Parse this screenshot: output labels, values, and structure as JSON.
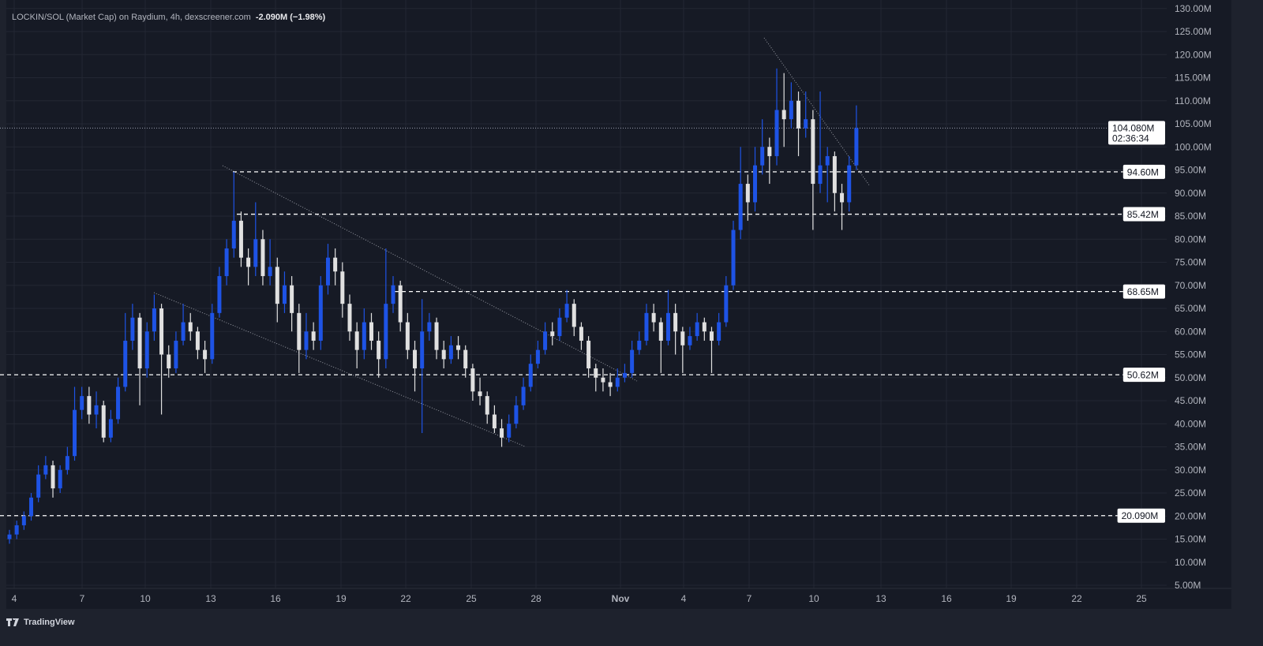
{
  "header": {
    "title": "LOCKIN/SOL (Market Cap) on Raydium, 4h, dexscreener.com",
    "change": "-2.090M (−1.98%)"
  },
  "footer": {
    "brand": "TradingView",
    "logo_icon": "tradingview-logo-icon"
  },
  "colors": {
    "background": "#161a25",
    "grid": "#232733",
    "up": "#1e53e5",
    "down": "#e0e0e0",
    "tag_bg": "#ffffff"
  },
  "chart_data": {
    "type": "candlestick",
    "title": "LOCKIN/SOL (Market Cap) on Raydium, 4h, dexscreener.com",
    "ylim": [
      5,
      130
    ],
    "yticks": [
      "5.00M",
      "10.00M",
      "15.00M",
      "20.00M",
      "25.00M",
      "30.00M",
      "35.00M",
      "40.00M",
      "45.00M",
      "50.00M",
      "55.00M",
      "60.00M",
      "65.00M",
      "70.00M",
      "75.00M",
      "80.00M",
      "85.00M",
      "90.00M",
      "95.00M",
      "100.00M",
      "105.00M",
      "110.00M",
      "115.00M",
      "120.00M",
      "125.00M",
      "130.00M"
    ],
    "ytick_values": [
      5,
      10,
      15,
      20,
      25,
      30,
      35,
      40,
      45,
      50,
      55,
      60,
      65,
      70,
      75,
      80,
      85,
      90,
      95,
      100,
      105,
      110,
      115,
      120,
      125,
      130
    ],
    "xticks": [
      "4",
      "7",
      "10",
      "13",
      "16",
      "19",
      "22",
      "25",
      "28",
      "Nov",
      "4",
      "7",
      "10",
      "13",
      "16",
      "19",
      "22",
      "25"
    ],
    "grid": true,
    "last_price": {
      "value": 104.08,
      "label": "104.080M",
      "countdown": "02:36:34"
    },
    "levels": [
      {
        "value": 94.6,
        "label": "94.60M"
      },
      {
        "value": 85.42,
        "label": "85.42M"
      },
      {
        "value": 68.65,
        "label": "68.65M"
      },
      {
        "value": 50.62,
        "label": "50.62M"
      },
      {
        "value": 20.09,
        "label": "20.090M"
      }
    ],
    "candles_ohlc": [
      [
        15,
        17,
        14,
        16
      ],
      [
        16,
        19,
        15,
        18
      ],
      [
        18,
        21,
        17,
        20
      ],
      [
        20,
        25,
        19,
        24
      ],
      [
        24,
        31,
        23,
        29
      ],
      [
        29,
        33,
        28,
        31
      ],
      [
        31,
        32,
        24,
        26
      ],
      [
        26,
        31,
        25,
        30
      ],
      [
        30,
        35,
        29,
        33
      ],
      [
        33,
        48,
        32,
        43
      ],
      [
        43,
        48,
        41,
        46
      ],
      [
        46,
        48,
        40,
        42
      ],
      [
        42,
        47,
        39,
        44
      ],
      [
        44,
        45,
        36,
        37
      ],
      [
        37,
        43,
        36,
        41
      ],
      [
        41,
        50,
        40,
        48
      ],
      [
        48,
        64,
        47,
        58
      ],
      [
        58,
        66,
        56,
        63
      ],
      [
        63,
        64,
        44,
        52
      ],
      [
        52,
        62,
        50,
        60
      ],
      [
        60,
        68,
        58,
        65
      ],
      [
        65,
        66,
        42,
        55
      ],
      [
        55,
        57,
        50,
        52
      ],
      [
        52,
        60,
        51,
        58
      ],
      [
        58,
        66,
        57,
        62
      ],
      [
        62,
        64,
        58,
        60
      ],
      [
        60,
        61,
        54,
        56
      ],
      [
        56,
        58,
        51,
        54
      ],
      [
        54,
        66,
        53,
        64
      ],
      [
        64,
        74,
        63,
        72
      ],
      [
        72,
        80,
        70,
        78
      ],
      [
        78,
        94.6,
        76,
        84
      ],
      [
        84,
        86,
        74,
        76
      ],
      [
        76,
        78,
        70,
        74
      ],
      [
        74,
        88,
        72,
        80
      ],
      [
        80,
        82,
        70,
        72
      ],
      [
        72,
        80,
        70,
        74
      ],
      [
        74,
        76,
        62,
        66
      ],
      [
        66,
        73,
        64,
        70
      ],
      [
        70,
        72,
        60,
        64
      ],
      [
        64,
        66,
        51,
        56
      ],
      [
        56,
        64,
        54,
        60
      ],
      [
        60,
        62,
        56,
        58
      ],
      [
        58,
        72,
        56,
        70
      ],
      [
        70,
        79,
        68,
        76
      ],
      [
        76,
        78,
        70,
        73
      ],
      [
        73,
        75,
        63,
        66
      ],
      [
        66,
        68,
        58,
        60
      ],
      [
        60,
        62,
        52,
        56
      ],
      [
        56,
        65,
        54,
        62
      ],
      [
        62,
        64,
        56,
        58
      ],
      [
        58,
        60,
        50,
        54
      ],
      [
        54,
        78,
        52,
        66
      ],
      [
        66,
        72,
        64,
        70
      ],
      [
        70,
        71,
        60,
        62
      ],
      [
        62,
        64,
        54,
        56
      ],
      [
        56,
        58,
        47,
        52
      ],
      [
        52,
        67,
        38,
        60
      ],
      [
        60,
        64,
        58,
        62
      ],
      [
        62,
        63,
        54,
        56
      ],
      [
        56,
        58,
        52,
        54
      ],
      [
        54,
        59,
        53,
        57
      ],
      [
        57,
        59,
        54,
        56
      ],
      [
        56,
        57,
        50,
        52
      ],
      [
        52,
        53,
        45,
        47
      ],
      [
        47,
        50,
        44,
        46
      ],
      [
        46,
        47,
        40,
        42
      ],
      [
        42,
        44,
        38,
        39
      ],
      [
        39,
        41,
        35,
        37
      ],
      [
        37,
        42,
        36,
        40
      ],
      [
        40,
        46,
        39,
        44
      ],
      [
        44,
        50,
        43,
        48
      ],
      [
        48,
        55,
        47,
        53
      ],
      [
        53,
        58,
        52,
        56
      ],
      [
        56,
        62,
        55,
        60
      ],
      [
        60,
        62,
        57,
        59
      ],
      [
        59,
        65,
        58,
        63
      ],
      [
        63,
        69,
        62,
        66
      ],
      [
        66,
        67,
        59,
        61
      ],
      [
        61,
        62,
        56,
        58
      ],
      [
        58,
        59,
        50,
        52
      ],
      [
        52,
        53,
        47,
        50
      ],
      [
        50,
        52,
        47,
        49
      ],
      [
        49,
        51,
        46,
        48
      ],
      [
        48,
        52,
        47,
        50
      ],
      [
        50,
        53,
        49,
        51
      ],
      [
        51,
        58,
        50,
        56
      ],
      [
        56,
        60,
        55,
        58
      ],
      [
        58,
        66,
        57,
        64
      ],
      [
        64,
        66,
        60,
        62
      ],
      [
        62,
        63,
        51,
        58
      ],
      [
        58,
        69,
        57,
        64
      ],
      [
        64,
        66,
        55,
        60
      ],
      [
        60,
        61,
        51,
        57
      ],
      [
        57,
        61,
        56,
        59
      ],
      [
        59,
        64,
        58,
        62
      ],
      [
        62,
        63,
        58,
        60
      ],
      [
        60,
        61,
        51,
        58
      ],
      [
        58,
        64,
        57,
        62
      ],
      [
        62,
        72,
        61,
        70
      ],
      [
        70,
        84,
        69,
        82
      ],
      [
        82,
        100,
        80,
        92
      ],
      [
        92,
        94,
        84,
        88
      ],
      [
        88,
        100,
        86,
        96
      ],
      [
        96,
        106,
        94,
        100
      ],
      [
        100,
        102,
        92,
        98
      ],
      [
        98,
        117,
        96,
        108
      ],
      [
        108,
        116,
        100,
        106
      ],
      [
        106,
        114,
        104,
        110
      ],
      [
        110,
        112,
        98,
        104
      ],
      [
        104,
        112,
        102,
        106
      ],
      [
        106,
        108,
        82,
        92
      ],
      [
        92,
        112,
        90,
        96
      ],
      [
        96,
        100,
        88,
        98
      ],
      [
        98,
        99,
        86,
        90
      ],
      [
        90,
        92,
        82,
        88
      ],
      [
        88,
        98,
        86,
        96
      ],
      [
        96,
        109,
        95,
        104.08
      ]
    ]
  }
}
